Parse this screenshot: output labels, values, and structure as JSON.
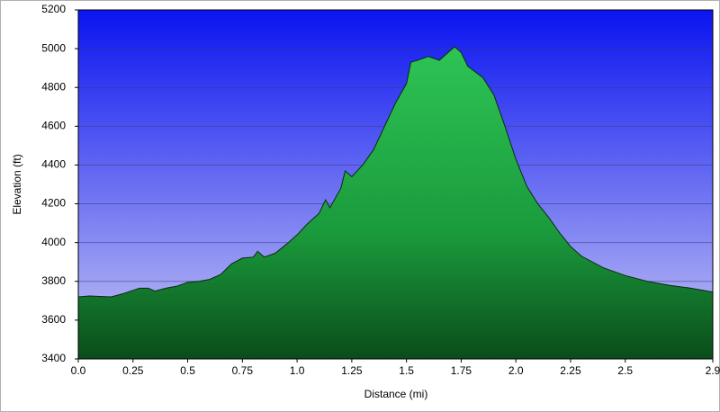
{
  "chart_data": {
    "type": "area",
    "x_label": "Distance    (mi)",
    "y_label": "Elevation (ft)",
    "x": [
      0,
      0.05,
      0.15,
      0.2,
      0.28,
      0.32,
      0.35,
      0.4,
      0.45,
      0.5,
      0.55,
      0.6,
      0.65,
      0.7,
      0.75,
      0.8,
      0.82,
      0.85,
      0.9,
      0.95,
      1.0,
      1.05,
      1.1,
      1.13,
      1.15,
      1.2,
      1.22,
      1.25,
      1.3,
      1.35,
      1.4,
      1.45,
      1.5,
      1.52,
      1.55,
      1.6,
      1.65,
      1.7,
      1.72,
      1.75,
      1.78,
      1.85,
      1.9,
      1.95,
      2.0,
      2.05,
      2.1,
      2.15,
      2.2,
      2.25,
      2.3,
      2.4,
      2.5,
      2.6,
      2.7,
      2.8,
      2.9
    ],
    "values": [
      3720,
      3725,
      3720,
      3735,
      3765,
      3765,
      3750,
      3765,
      3775,
      3795,
      3800,
      3810,
      3835,
      3890,
      3920,
      3925,
      3955,
      3925,
      3945,
      3990,
      4040,
      4100,
      4150,
      4220,
      4180,
      4280,
      4370,
      4340,
      4400,
      4480,
      4600,
      4720,
      4820,
      4930,
      4940,
      4960,
      4940,
      4990,
      5010,
      4980,
      4910,
      4850,
      4760,
      4600,
      4430,
      4290,
      4200,
      4130,
      4050,
      3980,
      3930,
      3870,
      3830,
      3800,
      3780,
      3765,
      3745
    ],
    "color": "#22a84a",
    "xlim": [
      0,
      2.9
    ],
    "ylim": [
      3400,
      5200
    ],
    "xticks": [
      {
        "value": 0,
        "label": "0.0"
      },
      0.25,
      0.5,
      0.75,
      {
        "value": 1,
        "label": "1.0"
      },
      1.25,
      1.5,
      1.75,
      {
        "value": 2,
        "label": "2.0"
      },
      2.25,
      2.5,
      2.9
    ],
    "yticks": [
      3400,
      3600,
      3800,
      4000,
      4200,
      4400,
      4600,
      4800,
      5000,
      5200
    ],
    "grid": true
  }
}
